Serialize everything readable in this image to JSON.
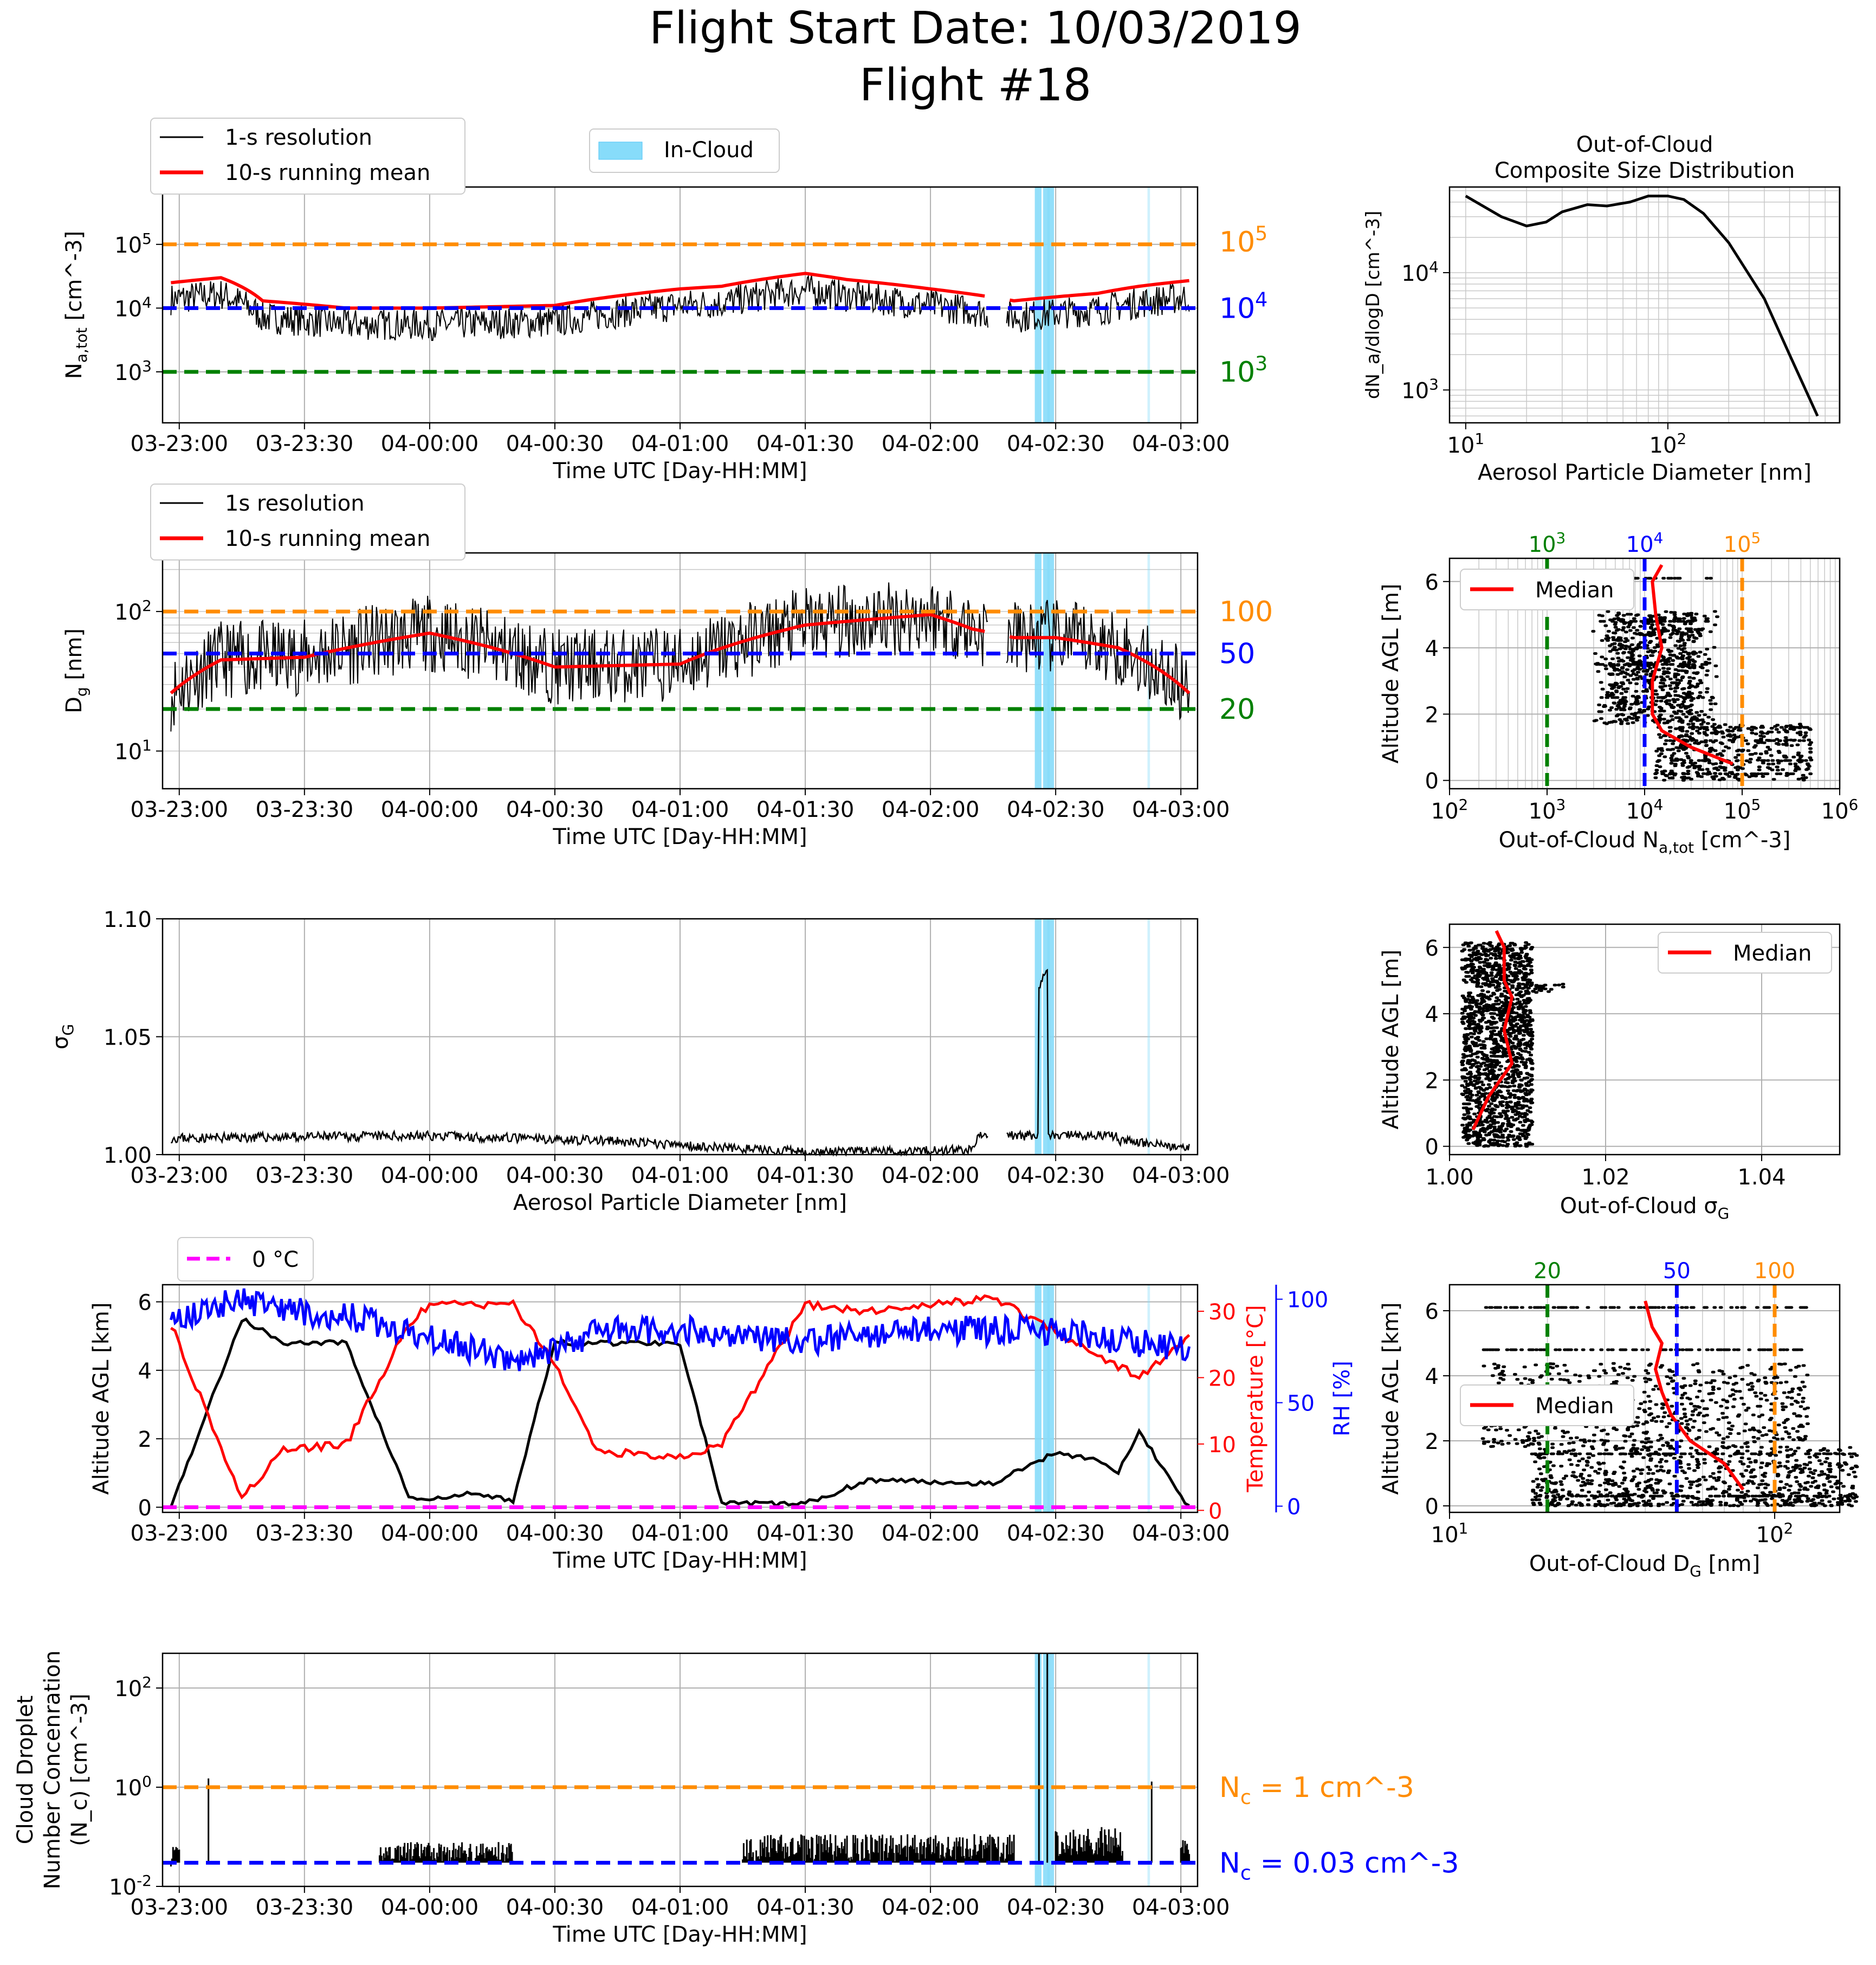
{
  "figure": {
    "title_line1": "Flight Start Date: 10/03/2019",
    "title_line2": "Flight #18"
  },
  "time_ticks": [
    "03-23:00",
    "03-23:30",
    "04-00:00",
    "04-00:30",
    "04-01:00",
    "04-01:30",
    "04-02:00",
    "04-02:30",
    "04-03:00"
  ],
  "colors": {
    "orange": "#ff8c00",
    "blue": "#0000ff",
    "green": "#008000",
    "red": "#ff0000",
    "magenta": "#ff00ff",
    "cloud": "#87dcfa",
    "black": "#000000"
  },
  "panels": {
    "na": {
      "ylabel": "N_a,tot [cm^-3]",
      "xlabel": "Time UTC [Day-HH:MM]",
      "legend": [
        "1-s resolution",
        "10-s running mean"
      ],
      "cloud_legend": "In-Cloud",
      "ref_labels": [
        "10^5",
        "10^4",
        "10^3"
      ],
      "ref_values": [
        100000,
        10000,
        1000
      ]
    },
    "dg": {
      "ylabel": "D_g [nm]",
      "xlabel": "Time UTC [Day-HH:MM]",
      "legend": [
        "1s resolution",
        "10-s running mean"
      ],
      "ref_labels": [
        "100",
        "50",
        "20"
      ],
      "ref_values": [
        100,
        50,
        20
      ]
    },
    "sigma": {
      "ylabel": "σ_G",
      "xlabel": "Aerosol Particle Diameter [nm]",
      "yticks": [
        "1.00",
        "1.05",
        "1.10"
      ]
    },
    "alt": {
      "ylabel": "Altitude AGL [km]",
      "ylabel_temp": "Temperature [°C]",
      "ylabel_rh": "RH [%]",
      "xlabel": "Time UTC [Day-HH:MM]",
      "legend": "0 °C",
      "yticks": [
        "0",
        "2",
        "4",
        "6"
      ],
      "temp_ticks": [
        "0",
        "10",
        "20",
        "30"
      ],
      "rh_ticks": [
        "0",
        "50",
        "100"
      ]
    },
    "nc": {
      "ylabel_line1": "Cloud Droplet",
      "ylabel_line2": "Number Concenration",
      "ylabel_line3": "(N_c) [cm^-3]",
      "xlabel": "Time UTC [Day-HH:MM]",
      "ref_labels": [
        "N_c = 1 cm^-3",
        "N_c = 0.03 cm^-3"
      ]
    },
    "sd": {
      "title_line1": "Out-of-Cloud",
      "title_line2": "Composite Size Distribution",
      "xlabel": "Aerosol Particle Diameter [nm]",
      "ylabel": "dN_a/dlogD [cm^-3]"
    },
    "prof_na": {
      "xlabel": "Out-of-Cloud N_a,tot [cm^-3]",
      "ylabel": "Altitude AGL [m]",
      "legend": "Median",
      "top_labels": [
        "10^3",
        "10^4",
        "10^5"
      ]
    },
    "prof_sigma": {
      "xlabel": "Out-of-Cloud σ_G",
      "ylabel": "Altitude AGL [m]",
      "legend": "Median",
      "xticks": [
        "1.00",
        "1.02",
        "1.04"
      ]
    },
    "prof_dg": {
      "xlabel": "Out-of-Cloud D_G [nm]",
      "ylabel": "Altitude AGL [km]",
      "legend": "Median",
      "top_labels": [
        "20",
        "50",
        "100"
      ]
    }
  },
  "chart_data": [
    {
      "type": "line",
      "title": "",
      "xlabel": "Time UTC [Day-HH:MM]",
      "ylabel": "N_a,tot [cm^-3]",
      "yscale": "log",
      "series": [
        {
          "name": "10-s running mean",
          "x": [
            "22:58",
            "23:10",
            "23:20",
            "23:40",
            "00:00",
            "00:30",
            "01:00",
            "01:10",
            "01:30",
            "01:40",
            "02:00",
            "02:20",
            "02:30",
            "02:40",
            "02:50",
            "03:02"
          ],
          "values": [
            25000,
            30000,
            13000,
            10000,
            10000,
            11000,
            20000,
            22000,
            35000,
            28000,
            20000,
            13000,
            15000,
            17000,
            22000,
            27000
          ]
        }
      ]
    },
    {
      "type": "line",
      "title": "",
      "xlabel": "Time UTC [Day-HH:MM]",
      "ylabel": "D_g [nm]",
      "yscale": "log",
      "series": [
        {
          "name": "10-s running mean",
          "x": [
            "22:58",
            "23:10",
            "23:30",
            "00:00",
            "00:30",
            "01:00",
            "01:30",
            "02:00",
            "02:10",
            "02:20",
            "02:30",
            "02:45",
            "03:02"
          ],
          "values": [
            26,
            45,
            47,
            70,
            40,
            42,
            80,
            95,
            75,
            65,
            65,
            55,
            26
          ]
        }
      ]
    },
    {
      "type": "line",
      "title": "",
      "xlabel": "Aerosol Particle Diameter [nm]",
      "ylabel": "σ_G",
      "series": [
        {
          "name": "",
          "x": [
            "22:58",
            "00:00",
            "00:40",
            "01:30",
            "02:10",
            "02:28",
            "02:45",
            "03:02"
          ],
          "values": [
            1.007,
            1.008,
            1.006,
            1.001,
            1.002,
            1.08,
            1.006,
            1.003
          ]
        }
      ]
    },
    {
      "type": "line",
      "title": "",
      "xlabel": "Time UTC [Day-HH:MM]",
      "ylabel": "Altitude AGL [km]",
      "series": [
        {
          "name": "",
          "x": [
            "22:58",
            "23:15",
            "23:25",
            "23:40",
            "23:55",
            "00:00",
            "00:10",
            "00:20",
            "00:30",
            "00:40",
            "01:00",
            "01:10",
            "01:30",
            "01:45",
            "02:15",
            "02:30",
            "02:40",
            "02:45",
            "02:50",
            "03:02"
          ],
          "values": [
            0.0,
            5.5,
            4.8,
            4.8,
            0.3,
            0.2,
            0.4,
            0.2,
            4.8,
            4.8,
            4.8,
            0.1,
            0.1,
            0.8,
            0.7,
            1.6,
            1.4,
            1.0,
            2.2,
            0.0
          ]
        },
        {
          "name": "Temperature",
          "x": [
            "22:58",
            "23:15",
            "23:25",
            "23:40",
            "23:55",
            "00:00",
            "00:20",
            "00:30",
            "00:40",
            "01:00",
            "01:10",
            "01:30",
            "01:45",
            "02:15",
            "02:30",
            "02:50",
            "03:02"
          ],
          "values": [
            28,
            2,
            9,
            10,
            28,
            31,
            31,
            22,
            9,
            8,
            10,
            31,
            30,
            32,
            27,
            20,
            26
          ]
        },
        {
          "name": "RH",
          "x": [
            "22:58",
            "23:15",
            "23:25",
            "23:40",
            "23:55",
            "00:20",
            "00:30",
            "00:40",
            "01:00",
            "01:30",
            "02:00",
            "02:30",
            "03:02"
          ],
          "values": [
            90,
            100,
            95,
            92,
            85,
            70,
            75,
            85,
            85,
            80,
            85,
            85,
            75
          ]
        }
      ]
    },
    {
      "type": "line",
      "title": "",
      "xlabel": "Time UTC [Day-HH:MM]",
      "ylabel": "Cloud Droplet Number Concenration (N_c) [cm^-3]",
      "yscale": "log",
      "series": [
        {
          "name": "",
          "x": [
            "23:30",
            "00:20",
            "01:15",
            "01:45",
            "02:20",
            "02:28",
            "02:45",
            "03:00"
          ],
          "values": [
            0.03,
            0.05,
            0.05,
            0.08,
            0.04,
            500,
            0.1,
            0.04
          ]
        }
      ]
    },
    {
      "type": "line",
      "title": "Out-of-Cloud Composite Size Distribution",
      "xlabel": "Aerosol Particle Diameter [nm]",
      "ylabel": "dN_a/dlogD [cm^-3]",
      "xscale": "log",
      "yscale": "log",
      "series": [
        {
          "name": "",
          "x": [
            10,
            15,
            20,
            25,
            30,
            40,
            50,
            65,
            80,
            100,
            120,
            150,
            200,
            300,
            400,
            550
          ],
          "values": [
            45000,
            30000,
            25000,
            27000,
            33000,
            38000,
            37000,
            40000,
            45000,
            45000,
            42000,
            32000,
            18000,
            6000,
            2000,
            600
          ]
        }
      ]
    },
    {
      "type": "scatter",
      "title": "",
      "xlabel": "Out-of-Cloud N_a,tot [cm^-3]",
      "ylabel": "Altitude AGL [m]",
      "xscale": "log",
      "series": [
        {
          "name": "Median",
          "x": [
            80000,
            30000,
            15000,
            12000,
            12000,
            15000,
            13000,
            12000,
            15000
          ],
          "values": [
            0.5,
            1,
            1.5,
            2.0,
            3.0,
            4.0,
            5.0,
            6.0,
            6.5
          ]
        }
      ]
    },
    {
      "type": "scatter",
      "title": "",
      "xlabel": "Out-of-Cloud σ_G",
      "ylabel": "Altitude AGL [m]",
      "series": [
        {
          "name": "Median",
          "x": [
            1.003,
            1.005,
            1.008,
            1.007,
            1.008,
            1.007,
            1.007,
            1.006
          ],
          "values": [
            0.5,
            1.5,
            2.5,
            3.5,
            4.5,
            5.0,
            6.0,
            6.5
          ]
        }
      ]
    },
    {
      "type": "scatter",
      "title": "",
      "xlabel": "Out-of-Cloud D_G [nm]",
      "ylabel": "Altitude AGL [km]",
      "xscale": "log",
      "series": [
        {
          "name": "Median",
          "x": [
            80,
            70,
            55,
            48,
            45,
            43,
            45,
            42,
            40
          ],
          "values": [
            0.5,
            1.3,
            2.0,
            2.8,
            3.5,
            4.2,
            5.0,
            5.5,
            6.3
          ]
        }
      ]
    }
  ]
}
